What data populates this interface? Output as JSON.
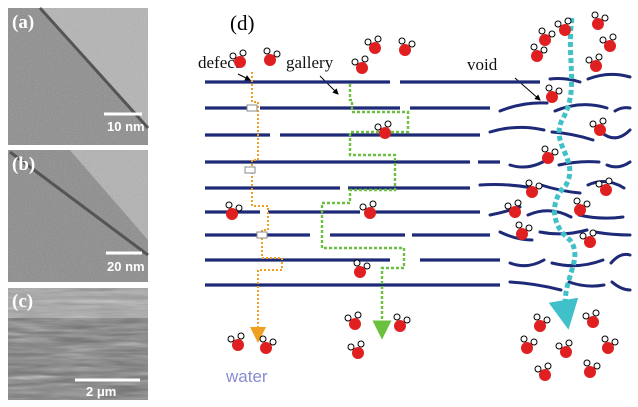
{
  "panels": [
    {
      "label": "(a)",
      "scale_bar": "10 nm"
    },
    {
      "label": "(b)",
      "scale_bar": "20 nm"
    },
    {
      "label": "(c)",
      "scale_bar": "2 μm"
    }
  ],
  "diagram": {
    "label": "(d)",
    "annotations": [
      "defect",
      "gallery",
      "void"
    ],
    "legend": "water"
  }
}
